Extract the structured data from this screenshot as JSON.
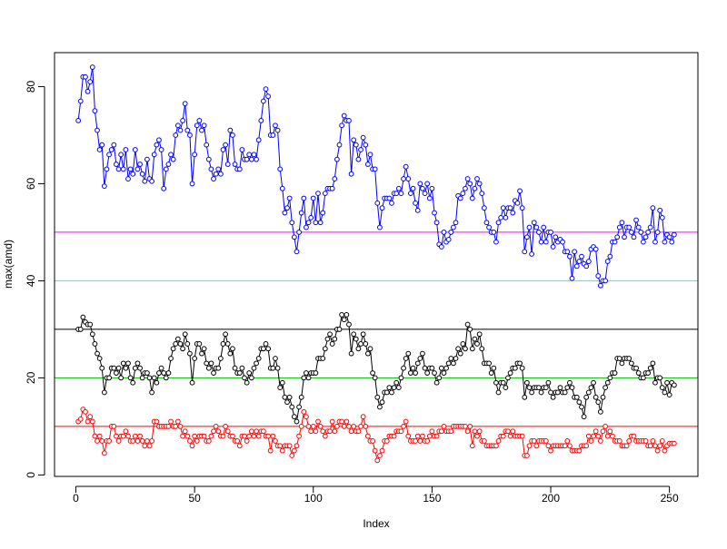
{
  "chart_data": {
    "type": "line",
    "x_label": "Index",
    "y_label": "max(amd)",
    "xlim": [
      -9,
      262
    ],
    "ylim": [
      -0.3,
      87
    ],
    "xticks": [
      0,
      50,
      100,
      150,
      200,
      250
    ],
    "yticks": [
      0,
      20,
      40,
      60,
      80
    ],
    "hlines": [
      {
        "value": 10,
        "color": "#ff0000"
      },
      {
        "value": 20,
        "color": "#00c000"
      },
      {
        "value": 30,
        "color": "#000000"
      },
      {
        "value": 40,
        "color": "#00ffff"
      },
      {
        "value": 50,
        "color": "#ff00ff"
      }
    ],
    "series": [
      {
        "color": "#0000ff",
        "values": [
          73,
          77,
          82,
          82,
          79,
          81,
          84,
          75,
          71,
          67,
          68,
          59.5,
          63,
          66,
          67,
          68,
          64,
          63,
          66,
          63,
          67,
          61,
          63,
          62,
          67,
          63,
          64,
          62,
          60.5,
          65,
          61,
          60.5,
          66,
          68,
          69,
          67,
          59,
          63,
          64,
          66,
          65,
          70,
          72,
          71,
          73,
          76.5,
          71,
          70,
          60,
          66,
          72,
          73,
          71,
          72,
          68,
          65,
          63,
          61,
          62,
          63,
          62,
          67,
          68,
          64,
          71,
          70,
          64,
          63,
          63,
          67,
          65,
          65,
          66,
          65,
          66,
          65,
          69,
          73,
          77,
          79.5,
          78,
          70,
          70,
          72,
          71,
          63,
          59,
          54,
          55,
          57,
          52,
          49,
          46,
          50,
          54,
          57,
          51,
          52,
          53,
          57,
          52,
          58,
          52,
          54,
          58,
          59,
          59,
          59,
          61,
          65,
          68,
          72,
          74,
          73,
          73,
          62,
          69,
          68,
          65,
          67,
          69.5,
          68,
          64,
          66,
          63,
          63,
          56,
          51,
          55,
          57,
          57,
          57,
          56,
          58,
          58,
          59,
          58,
          61,
          63.5,
          61,
          58,
          59,
          56,
          54.5,
          60,
          59,
          58,
          60,
          57,
          59,
          54,
          52,
          47.5,
          47,
          50,
          48,
          48.5,
          50,
          51,
          52,
          57.5,
          57,
          58,
          59,
          61,
          60,
          57,
          59,
          61,
          60,
          58,
          55,
          52,
          51,
          50,
          50,
          48,
          52,
          53,
          55,
          53,
          55,
          55,
          54,
          56.5,
          56,
          58.5,
          55,
          46,
          49,
          51,
          45.5,
          52,
          51,
          50,
          48,
          51,
          48,
          50,
          50,
          47,
          49,
          48,
          48.5,
          48,
          46,
          46,
          45,
          40.5,
          46,
          43,
          44,
          45,
          43.5,
          43,
          44,
          46.5,
          47,
          46.5,
          41,
          39,
          40,
          40,
          44,
          45,
          48,
          48,
          49,
          51,
          52,
          49,
          51,
          51,
          50,
          49,
          52.5,
          51,
          50,
          48,
          49,
          50,
          51,
          55,
          48,
          50,
          54.5,
          53,
          48,
          49.5,
          49,
          48,
          49.5
        ]
      },
      {
        "color": "#000000",
        "values": [
          30,
          30,
          32.5,
          31.5,
          31,
          31,
          29,
          27,
          25,
          24,
          22,
          17,
          20,
          20,
          22,
          22,
          21,
          22,
          20,
          23,
          22,
          23,
          20,
          19,
          22,
          23,
          22,
          20,
          21,
          21,
          20,
          17,
          20,
          19,
          21,
          22,
          21,
          20,
          21,
          24,
          26,
          27,
          28,
          27,
          26,
          29,
          27,
          25,
          19,
          24,
          27,
          27,
          25,
          26,
          23,
          22,
          23,
          21,
          22,
          22,
          24,
          27,
          29,
          27,
          25,
          26,
          22,
          21,
          21,
          22,
          20,
          19,
          21,
          20,
          22,
          23,
          24,
          26,
          26,
          27,
          26,
          22,
          22,
          24,
          22,
          18,
          19,
          16,
          15,
          16,
          14,
          12,
          11,
          14,
          16,
          20,
          21,
          20,
          21,
          21,
          21,
          24,
          24,
          24,
          26,
          28,
          29,
          27,
          28,
          30,
          30,
          33,
          32,
          33,
          31,
          25,
          29,
          28,
          26,
          27,
          29,
          27,
          25,
          26,
          21,
          20,
          16,
          14,
          15,
          17,
          17,
          18,
          17,
          18,
          19,
          18,
          20,
          22,
          24,
          25,
          21,
          22,
          21,
          23,
          24,
          25,
          22,
          21,
          22,
          22,
          21,
          19,
          20,
          22,
          21,
          22,
          23,
          24,
          23,
          24,
          26,
          25,
          27,
          26,
          31,
          30,
          26,
          28,
          27,
          29,
          26,
          23,
          23,
          23,
          21,
          22,
          19,
          17,
          19,
          19,
          18,
          20,
          21,
          22,
          22,
          23,
          23,
          22,
          16,
          19,
          18,
          17,
          18,
          18,
          18,
          17,
          18,
          18,
          19,
          17,
          16,
          17,
          17,
          18,
          17,
          17,
          18,
          19,
          18,
          16,
          16,
          15,
          14,
          12,
          16,
          17,
          18,
          19,
          16,
          15,
          13,
          16,
          18,
          19,
          20,
          21,
          21,
          24,
          24,
          23,
          24,
          24,
          24,
          23,
          22,
          22,
          21,
          20,
          20,
          21,
          21,
          22,
          23,
          19,
          20,
          20,
          18,
          17,
          19,
          16.5,
          19,
          18.5
        ]
      },
      {
        "color": "#ff0000",
        "values": [
          11,
          11.5,
          13.5,
          13,
          11,
          12,
          11,
          8,
          7,
          8,
          7,
          4.5,
          7,
          7,
          10,
          10,
          8,
          7,
          8,
          8,
          9,
          8,
          7,
          7,
          8,
          7,
          8,
          7,
          6,
          7,
          6,
          7,
          11,
          11,
          10,
          10,
          10,
          10,
          10,
          11,
          10,
          10,
          11,
          10,
          8,
          9,
          8,
          7,
          6,
          8,
          7,
          8,
          8,
          8,
          7,
          7,
          8,
          9,
          10,
          9,
          8,
          8,
          10,
          9,
          8,
          8,
          7,
          7,
          6,
          8,
          8,
          7,
          8,
          9,
          8,
          9,
          8,
          9,
          9,
          8,
          8,
          5,
          8,
          7,
          6,
          6,
          5,
          6,
          6,
          6,
          4,
          5,
          6,
          8,
          10,
          13,
          12,
          10,
          9,
          10,
          9,
          11,
          10,
          9,
          8,
          9,
          9,
          11,
          9,
          10,
          11,
          11,
          10,
          11,
          10,
          9,
          10,
          9,
          9,
          10,
          12,
          10,
          8,
          7,
          7,
          5,
          3,
          4,
          5,
          7,
          7,
          8,
          8,
          8,
          9,
          9,
          9,
          10,
          11,
          8,
          7,
          7,
          7,
          8,
          7,
          8,
          7,
          7,
          8,
          9,
          8,
          8,
          9,
          9,
          10,
          9,
          9,
          9,
          10,
          10,
          10,
          10,
          10,
          10,
          9,
          10,
          6,
          9,
          8,
          9,
          7,
          7,
          6,
          6,
          6,
          6,
          6,
          7,
          8,
          8,
          9,
          9,
          8,
          9,
          8,
          8,
          8,
          8,
          4,
          4,
          6,
          7,
          7,
          6,
          7,
          7,
          7,
          7,
          6,
          5,
          6,
          6,
          6,
          6,
          6,
          6,
          7,
          6,
          5,
          5,
          5,
          5,
          6,
          6,
          6,
          8,
          7,
          8,
          9,
          8,
          7,
          9,
          10,
          8,
          9,
          8,
          7,
          7,
          7,
          6,
          6,
          6,
          7,
          8,
          8,
          7,
          7,
          7,
          7,
          7,
          6,
          6,
          7,
          6,
          5,
          6,
          7,
          5,
          6,
          6.5,
          6.5,
          6.5
        ]
      }
    ]
  }
}
